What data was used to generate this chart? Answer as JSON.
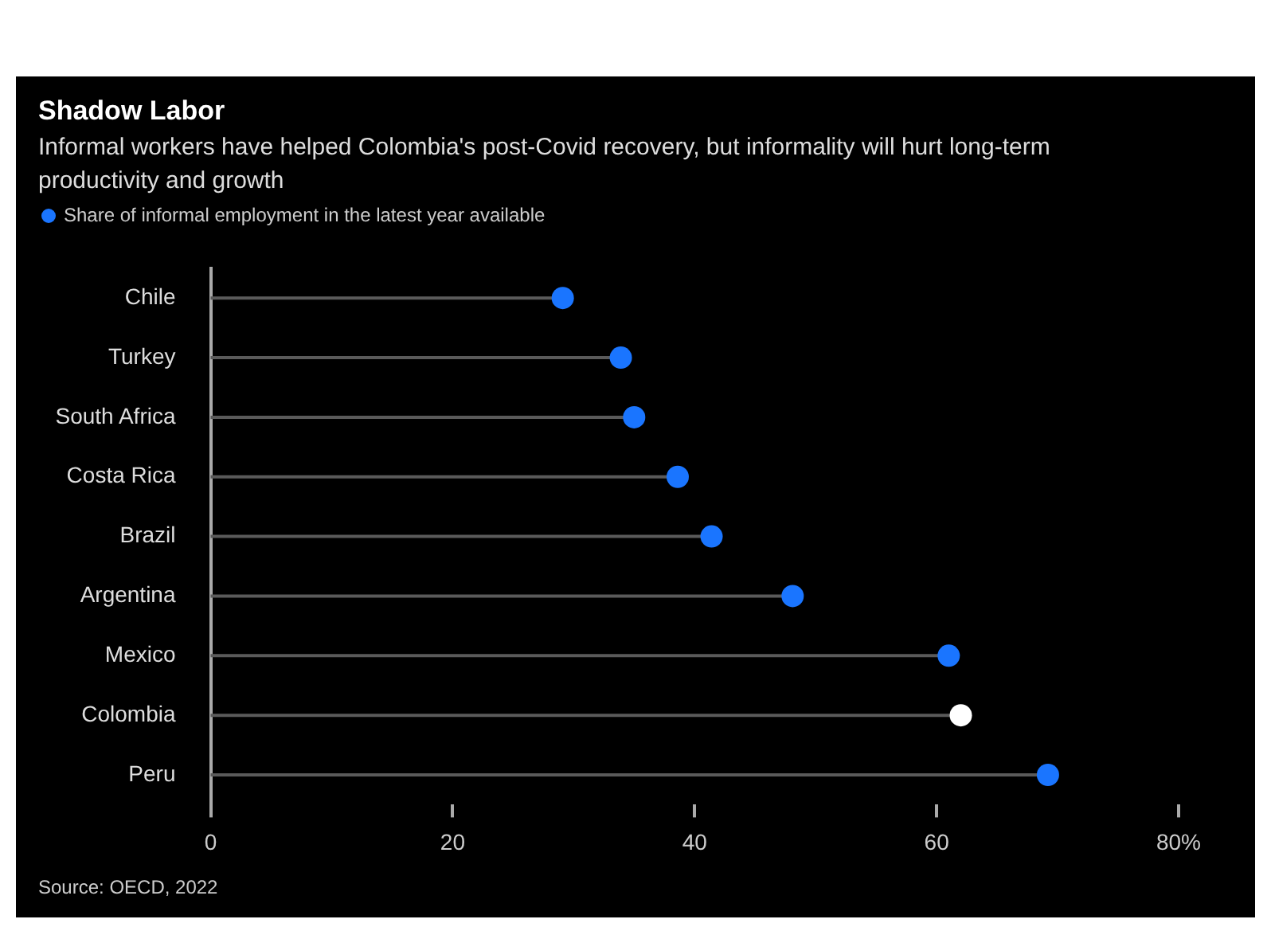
{
  "chart_data": {
    "type": "lollipop",
    "orientation": "horizontal",
    "title": "Shadow Labor",
    "subtitle": "Informal workers have helped Colombia's post-Covid recovery, but informality will hurt long-term productivity and growth",
    "categories": [
      "Chile",
      "Turkey",
      "South Africa",
      "Costa Rica",
      "Brazil",
      "Argentina",
      "Mexico",
      "Colombia",
      "Peru"
    ],
    "series": [
      {
        "name": "Share of informal employment in the latest year available",
        "color": "#1a75ff",
        "colors": [
          "#1a75ff",
          "#1a75ff",
          "#1a75ff",
          "#1a75ff",
          "#1a75ff",
          "#1a75ff",
          "#1a75ff",
          "#ffffff",
          "#1a75ff"
        ],
        "values": [
          29.1,
          33.9,
          35.0,
          38.6,
          41.4,
          48.1,
          61.0,
          62.0,
          69.2
        ]
      }
    ],
    "xlim": [
      0,
      80
    ],
    "xticks": [
      0,
      20,
      40,
      60,
      {
        "value": 80,
        "label": "80%"
      }
    ],
    "grid": false,
    "legend": "top left",
    "marker": "circle",
    "annotations": [
      "Source: OECD, 2022"
    ]
  }
}
